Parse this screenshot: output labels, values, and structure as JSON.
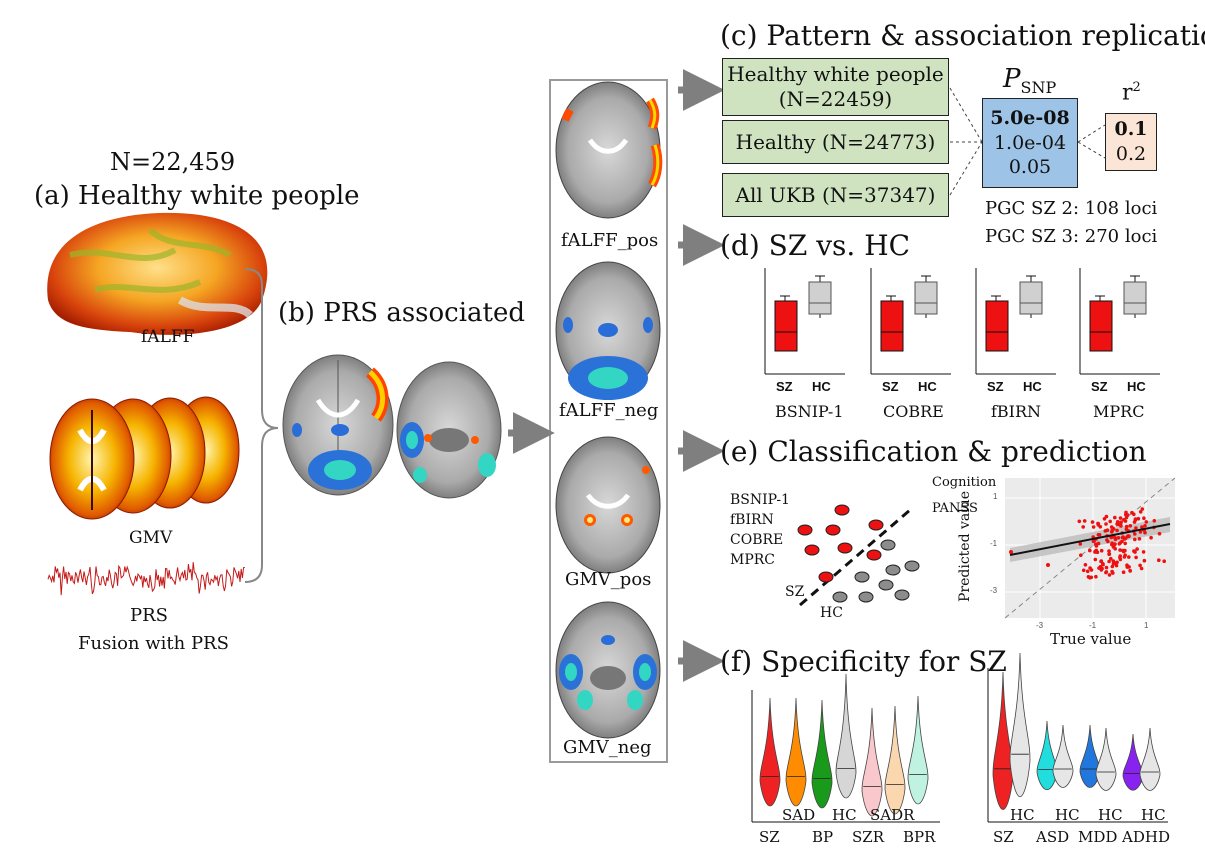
{
  "panel_a": {
    "n": "N=22,459",
    "title": "(a) Healthy white people",
    "fALFF": "fALFF",
    "gmv": "GMV",
    "prs": "PRS",
    "fusion": "Fusion with PRS"
  },
  "panel_b": {
    "title": "(b) PRS associated"
  },
  "column": {
    "labels": [
      "fALFF_pos",
      "fALFF_neg",
      "GMV_pos",
      "GMV_neg"
    ]
  },
  "panel_c": {
    "title": "(c) Pattern & association replication",
    "cohorts": [
      [
        "Healthy white people",
        "(N=22459)"
      ],
      [
        "Healthy (N=24773)"
      ],
      [
        "All UKB (N=37347)"
      ]
    ],
    "psnp_label": "P",
    "psnp_sub": "SNP",
    "psnp_values": [
      "5.0e-08",
      "1.0e-04",
      "0.05"
    ],
    "r2_label": "r",
    "r2_sup": "2",
    "r2_values": [
      "0.1",
      "0.2"
    ],
    "pgc": [
      "PGC SZ 2: 108 loci",
      "PGC SZ 3: 270 loci"
    ],
    "colors": {
      "psnp_box": "#9dc3e6",
      "r2_box": "#fbe5d6",
      "cohort_box": "#cfe3c1"
    }
  },
  "panel_d": {
    "title": "(d) SZ vs. HC",
    "datasets": [
      "BSNIP-1",
      "COBRE",
      "fBIRN",
      "MPRC"
    ],
    "group_labels": [
      "SZ",
      "HC"
    ],
    "colors": {
      "SZ": "#ee1111",
      "HC": "#d0d0d0"
    }
  },
  "panel_e": {
    "title": "(e) Classification & prediction",
    "datasets": [
      "BSNIP-1",
      "fBIRN",
      "COBRE",
      "MPRC"
    ],
    "sz": "SZ",
    "hc": "HC",
    "cognition": "Cognition",
    "panss": "PANSS",
    "ylabel": "Predicted value",
    "xlabel": "True value",
    "yticks": [
      "1",
      "-1",
      "-3"
    ],
    "xticks": [
      "-3",
      "-1",
      "1"
    ]
  },
  "panel_f": {
    "title": "(f) Specificity for SZ",
    "left_bottom": [
      "SZ",
      "BP",
      "SZR",
      "BPR"
    ],
    "left_top": [
      "SAD",
      "HC",
      "SADR"
    ],
    "right_bottom": [
      "SZ",
      "ASD",
      "MDD",
      "ADHD"
    ],
    "right_top": [
      "HC",
      "HC",
      "HC",
      "HC"
    ],
    "left_colors": [
      "#ee2222",
      "#ff8c00",
      "#1a9a1a",
      "#d6d6d6",
      "#f9c8cc",
      "#fbd7b0",
      "#bff2e1"
    ],
    "right_colors": [
      "#ee2222",
      "#e6e6e6",
      "#22dddd",
      "#e6e6e6",
      "#2277dd",
      "#e6e6e6",
      "#8822ee",
      "#e6e6e6"
    ]
  }
}
